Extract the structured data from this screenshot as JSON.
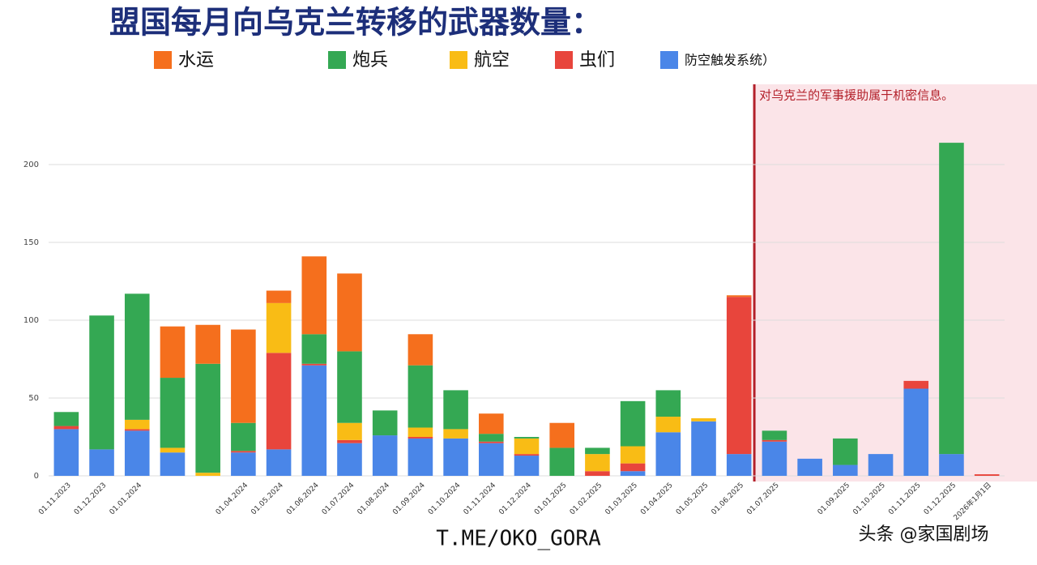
{
  "chart_data": {
    "type": "bar",
    "stacked": true,
    "title": "盟国每月向乌克兰转移的武器数量：",
    "annotation": "对乌克兰的军事援助属于机密信息。",
    "footer": "T.ME/OKO_GORA",
    "credit": "头条 @家国剧场",
    "categories": [
      "01.11.2023",
      "01.12.2023",
      "01.01.2024",
      null,
      null,
      "01.04.2024",
      "01.05.2024",
      "01.06.2024",
      "01.07.2024",
      "01.08.2024",
      "01.09.2024",
      "01.10.2024",
      "01.11.2024",
      "01.12.2024",
      "01.01.2025",
      "01.02.2025",
      "01.03.2025",
      "01.04.2025",
      "01.05.2025",
      "01.06.2025",
      "01.07.2025",
      null,
      "01.09.2025",
      "01.10.2025",
      "01.11.2025",
      "01.12.2025",
      "2026年1月1日"
    ],
    "series": [
      {
        "name": "防空触发系统）",
        "color": "#4a86e8",
        "values": [
          30,
          17,
          29,
          15,
          0,
          15,
          17,
          71,
          21,
          26,
          24,
          24,
          21,
          13,
          0,
          0,
          3,
          28,
          35,
          14,
          22,
          11,
          7,
          14,
          56,
          14,
          0
        ]
      },
      {
        "name": "虫们",
        "color": "#e8453c",
        "values": [
          2,
          0,
          1,
          0,
          0,
          1,
          62,
          1,
          2,
          0,
          1,
          0,
          1,
          1,
          0,
          3,
          5,
          0,
          0,
          101,
          1,
          0,
          0,
          0,
          5,
          0,
          1
        ]
      },
      {
        "name": "航空",
        "color": "#f9bc15",
        "values": [
          0,
          0,
          6,
          3,
          2,
          0,
          32,
          0,
          11,
          0,
          6,
          6,
          0,
          10,
          0,
          11,
          11,
          10,
          2,
          0,
          0,
          0,
          0,
          0,
          0,
          0,
          0
        ]
      },
      {
        "name": "炮兵",
        "color": "#34a853",
        "values": [
          9,
          86,
          81,
          45,
          70,
          18,
          0,
          19,
          46,
          16,
          40,
          25,
          5,
          1,
          18,
          4,
          29,
          17,
          0,
          0,
          6,
          0,
          17,
          0,
          0,
          200,
          0
        ]
      },
      {
        "name": "水运",
        "color": "#f56f1d",
        "values": [
          0,
          0,
          0,
          33,
          25,
          60,
          8,
          50,
          50,
          0,
          20,
          0,
          13,
          0,
          16,
          0,
          0,
          0,
          0,
          1,
          0,
          0,
          0,
          0,
          0,
          0,
          0
        ]
      }
    ],
    "ylim": [
      0,
      250
    ],
    "yticks": [
      0,
      50,
      100,
      150,
      200
    ],
    "grid": true
  }
}
